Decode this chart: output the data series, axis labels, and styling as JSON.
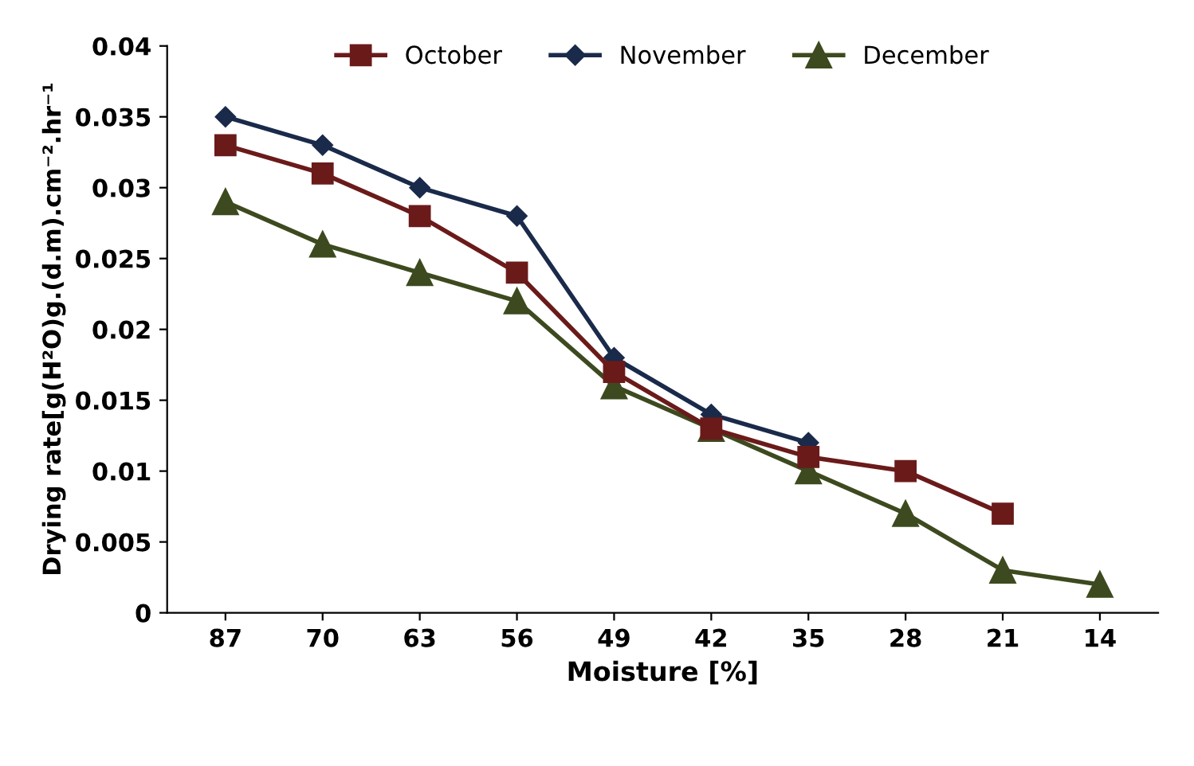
{
  "chart_data": {
    "type": "line",
    "xlabel": "Moisture [%]",
    "ylabel": "Drying rate[g(H²O)g.(d.m).cm⁻².hr⁻¹",
    "categories": [
      "87",
      "70",
      "63",
      "56",
      "49",
      "42",
      "35",
      "28",
      "21",
      "14"
    ],
    "series": [
      {
        "name": "October",
        "color": "#6b1a1a",
        "marker": "square",
        "values": [
          0.033,
          0.031,
          0.028,
          0.024,
          0.017,
          0.013,
          0.011,
          0.01,
          0.007,
          null
        ]
      },
      {
        "name": "November",
        "color": "#1a2a4a",
        "marker": "diamond",
        "values": [
          0.035,
          0.033,
          0.03,
          0.028,
          0.018,
          0.014,
          0.012,
          null,
          null,
          null
        ]
      },
      {
        "name": "December",
        "color": "#3d4a1f",
        "marker": "triangle",
        "values": [
          0.029,
          0.026,
          0.024,
          0.022,
          0.016,
          0.013,
          0.01,
          0.007,
          0.003,
          0.002
        ]
      }
    ],
    "ylim": [
      0,
      0.04
    ],
    "yticks": [
      0,
      0.005,
      0.01,
      0.015,
      0.02,
      0.025,
      0.03,
      0.035,
      0.04
    ],
    "grid": false,
    "legend": "top"
  }
}
